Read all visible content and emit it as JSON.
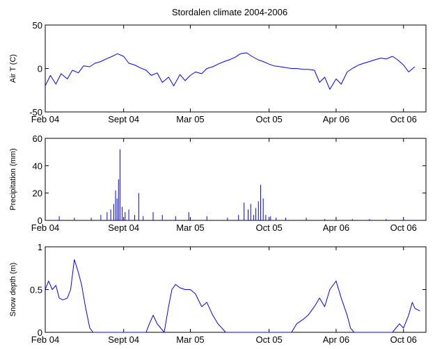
{
  "chart_data": [
    {
      "type": "line",
      "title": "Stordalen climate 2004-2006",
      "ylabel": "Air T (C)",
      "xlabel": "",
      "xlim": [
        "2004-02-01",
        "2006-12-01"
      ],
      "ylim": [
        -50,
        50
      ],
      "yticks": [
        "-50",
        "0",
        "50"
      ],
      "xticks": [
        {
          "label": "Feb 04",
          "date": "2004-02-01"
        },
        {
          "label": "Sept 04",
          "date": "2004-09-01"
        },
        {
          "label": "Mar 05",
          "date": "2005-03-01"
        },
        {
          "label": "Oct 05",
          "date": "2005-10-01"
        },
        {
          "label": "Apr 06",
          "date": "2006-04-01"
        },
        {
          "label": "Oct 06",
          "date": "2006-10-01"
        }
      ],
      "color": "#0000ff",
      "x": [
        "2004-02-01",
        "2004-02-15",
        "2004-03-01",
        "2004-03-15",
        "2004-04-01",
        "2004-04-15",
        "2004-05-01",
        "2004-05-15",
        "2004-06-01",
        "2004-06-15",
        "2004-07-01",
        "2004-07-15",
        "2004-08-01",
        "2004-08-15",
        "2004-09-01",
        "2004-09-15",
        "2004-10-01",
        "2004-10-15",
        "2004-11-01",
        "2004-11-15",
        "2004-12-01",
        "2004-12-15",
        "2005-01-01",
        "2005-01-15",
        "2005-02-01",
        "2005-02-15",
        "2005-03-01",
        "2005-03-15",
        "2005-04-01",
        "2005-04-15",
        "2005-05-01",
        "2005-05-15",
        "2005-06-01",
        "2005-06-15",
        "2005-07-01",
        "2005-07-15",
        "2005-08-01",
        "2005-08-15",
        "2005-09-01",
        "2005-09-15",
        "2005-10-01",
        "2005-10-15",
        "2005-11-01",
        "2005-11-15",
        "2005-12-01",
        "2005-12-15",
        "2006-01-01",
        "2006-01-15",
        "2006-02-01",
        "2006-02-15",
        "2006-03-01",
        "2006-03-15",
        "2006-04-01",
        "2006-04-15",
        "2006-05-01",
        "2006-05-15",
        "2006-06-01",
        "2006-06-15",
        "2006-07-01",
        "2006-07-15",
        "2006-08-01",
        "2006-08-15",
        "2006-09-01",
        "2006-09-15",
        "2006-10-01",
        "2006-10-15",
        "2006-11-01"
      ],
      "values": [
        -20,
        -8,
        -18,
        -6,
        -12,
        -2,
        -5,
        3,
        2,
        6,
        8,
        11,
        14,
        17,
        14,
        6,
        4,
        1,
        -2,
        -8,
        -5,
        -16,
        -10,
        -20,
        -7,
        -14,
        -8,
        -4,
        -6,
        0,
        2,
        5,
        8,
        10,
        13,
        17,
        18,
        14,
        10,
        8,
        5,
        3,
        2,
        1,
        0,
        0,
        -1,
        -1,
        -2,
        -16,
        -10,
        -24,
        -12,
        -18,
        -4,
        0,
        4,
        6,
        8,
        10,
        12,
        11,
        14,
        10,
        4,
        -4,
        2
      ]
    },
    {
      "type": "bar",
      "ylabel": "Precipitation (mm)",
      "xlabel": "",
      "xlim": [
        "2004-02-01",
        "2006-12-01"
      ],
      "ylim": [
        0,
        60
      ],
      "yticks": [
        "0",
        "20",
        "40",
        "60"
      ],
      "xticks": [
        {
          "label": "Feb 04",
          "date": "2004-02-01"
        },
        {
          "label": "Sept 04",
          "date": "2004-09-01"
        },
        {
          "label": "Mar 05",
          "date": "2005-03-01"
        },
        {
          "label": "Oct 05",
          "date": "2005-10-01"
        },
        {
          "label": "Apr 06",
          "date": "2006-04-01"
        },
        {
          "label": "Oct 06",
          "date": "2006-10-01"
        }
      ],
      "color": "#0000ff",
      "x": [
        "2004-03-10",
        "2004-04-20",
        "2004-06-05",
        "2004-07-01",
        "2004-07-18",
        "2004-07-28",
        "2004-08-05",
        "2004-08-10",
        "2004-08-14",
        "2004-08-18",
        "2004-08-22",
        "2004-08-28",
        "2004-09-05",
        "2004-09-15",
        "2004-10-01",
        "2004-10-12",
        "2004-10-24",
        "2004-11-20",
        "2004-12-15",
        "2005-01-20",
        "2005-02-25",
        "2005-04-15",
        "2005-06-10",
        "2005-07-10",
        "2005-07-25",
        "2005-08-05",
        "2005-08-12",
        "2005-08-20",
        "2005-08-26",
        "2005-09-02",
        "2005-09-08",
        "2005-09-15",
        "2005-09-22",
        "2005-10-05",
        "2005-10-20",
        "2005-11-15",
        "2006-01-10",
        "2006-03-01",
        "2006-05-15",
        "2006-07-01",
        "2006-08-15",
        "2006-10-01"
      ],
      "values": [
        3,
        2,
        2,
        4,
        6,
        8,
        12,
        22,
        16,
        30,
        52,
        10,
        6,
        8,
        4,
        20,
        3,
        6,
        4,
        3,
        6,
        3,
        2,
        4,
        13,
        8,
        12,
        4,
        9,
        14,
        26,
        16,
        4,
        3,
        2,
        2,
        2,
        1,
        1,
        1,
        1,
        1
      ]
    },
    {
      "type": "line",
      "ylabel": "Snow depth (m)",
      "xlabel": "",
      "xlim": [
        "2004-02-01",
        "2006-12-01"
      ],
      "ylim": [
        0,
        1
      ],
      "yticks": [
        "0",
        "0.5",
        "1"
      ],
      "xticks": [
        {
          "label": "Feb 04",
          "date": "2004-02-01"
        },
        {
          "label": "Sept 04",
          "date": "2004-09-01"
        },
        {
          "label": "Mar 05",
          "date": "2005-03-01"
        },
        {
          "label": "Oct 05",
          "date": "2005-10-01"
        },
        {
          "label": "Apr 06",
          "date": "2006-04-01"
        },
        {
          "label": "Oct 06",
          "date": "2006-10-01"
        }
      ],
      "color": "#0000ff",
      "x": [
        "2004-02-01",
        "2004-02-10",
        "2004-02-20",
        "2004-03-01",
        "2004-03-10",
        "2004-03-20",
        "2004-04-01",
        "2004-04-10",
        "2004-04-20",
        "2004-05-01",
        "2004-05-10",
        "2004-05-20",
        "2004-06-01",
        "2004-06-10",
        "2004-06-20",
        "2004-10-01",
        "2004-11-01",
        "2004-11-10",
        "2004-11-20",
        "2004-12-01",
        "2004-12-20",
        "2005-01-01",
        "2005-01-10",
        "2005-01-20",
        "2005-02-01",
        "2005-02-15",
        "2005-03-01",
        "2005-03-15",
        "2005-04-01",
        "2005-04-15",
        "2005-05-01",
        "2005-05-15",
        "2005-06-01",
        "2005-06-05",
        "2005-10-01",
        "2005-12-01",
        "2005-12-15",
        "2006-01-01",
        "2006-01-15",
        "2006-02-01",
        "2006-02-15",
        "2006-03-01",
        "2006-03-15",
        "2006-04-01",
        "2006-04-15",
        "2006-05-01",
        "2006-05-10",
        "2006-05-20",
        "2006-09-01",
        "2006-09-20",
        "2006-10-01",
        "2006-10-15",
        "2006-10-25",
        "2006-11-01",
        "2006-11-15"
      ],
      "values": [
        0.5,
        0.6,
        0.5,
        0.55,
        0.4,
        0.38,
        0.4,
        0.5,
        0.85,
        0.7,
        0.55,
        0.3,
        0.05,
        0,
        0,
        0,
        0,
        0.1,
        0.2,
        0.1,
        0,
        0.3,
        0.5,
        0.56,
        0.52,
        0.5,
        0.5,
        0.45,
        0.3,
        0.35,
        0.2,
        0.1,
        0.02,
        0,
        0,
        0,
        0.1,
        0.15,
        0.2,
        0.3,
        0.4,
        0.3,
        0.5,
        0.6,
        0.4,
        0.2,
        0.05,
        0,
        0,
        0.1,
        0.05,
        0.2,
        0.35,
        0.28,
        0.25
      ]
    }
  ]
}
